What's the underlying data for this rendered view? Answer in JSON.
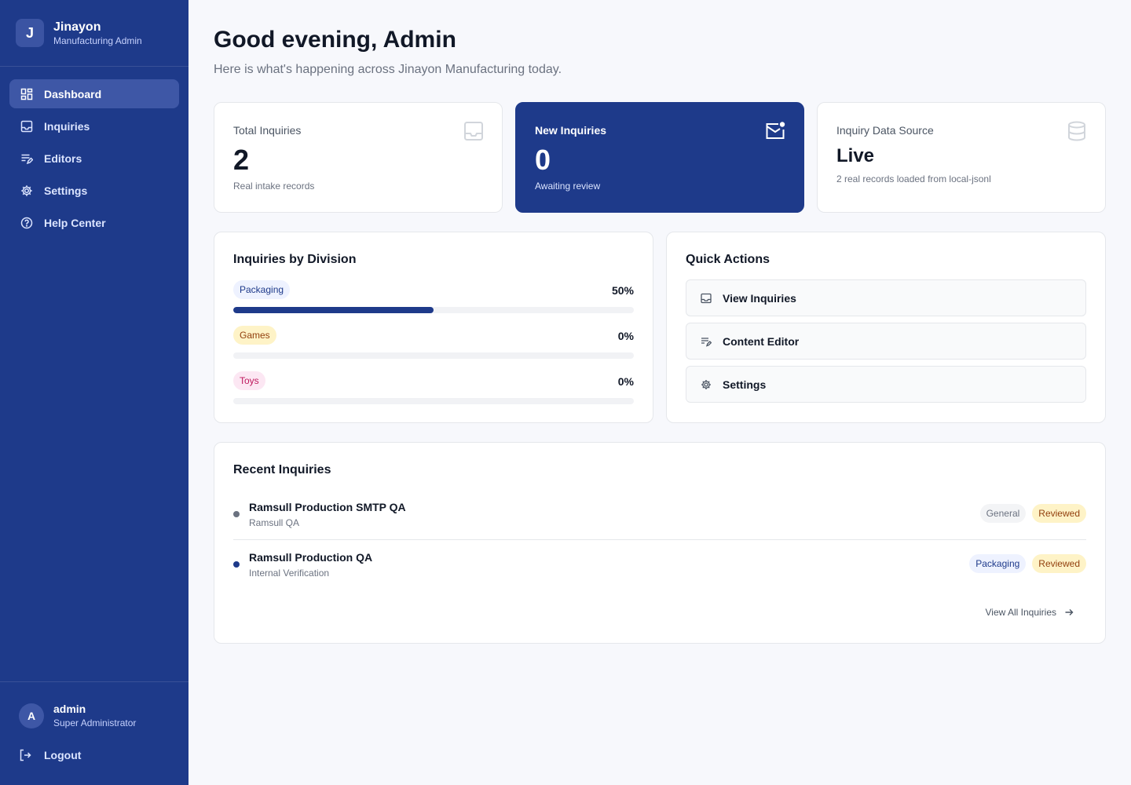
{
  "brand": {
    "logo_letter": "J",
    "name": "Jinayon",
    "subtitle": "Manufacturing Admin"
  },
  "nav": [
    {
      "label": "Dashboard",
      "icon": "dashboard-icon",
      "active": true
    },
    {
      "label": "Inquiries",
      "icon": "inbox-icon",
      "active": false
    },
    {
      "label": "Editors",
      "icon": "edit-list-icon",
      "active": false
    },
    {
      "label": "Settings",
      "icon": "gear-icon",
      "active": false
    },
    {
      "label": "Help Center",
      "icon": "help-icon",
      "active": false
    }
  ],
  "user": {
    "avatar_letter": "A",
    "name": "admin",
    "role": "Super Administrator",
    "logout_label": "Logout"
  },
  "header": {
    "greeting": "Good evening, Admin",
    "subtitle": "Here is what's happening across Jinayon Manufacturing today."
  },
  "stats": {
    "total": {
      "title": "Total Inquiries",
      "value": "2",
      "desc": "Real intake records",
      "icon": "inbox-icon"
    },
    "new": {
      "title": "New Inquiries",
      "value": "0",
      "desc": "Awaiting review",
      "icon": "mail-notification-icon"
    },
    "source": {
      "title": "Inquiry Data Source",
      "value": "Live",
      "desc": "2 real records loaded from local-jsonl",
      "icon": "database-icon"
    }
  },
  "divisions": {
    "title": "Inquiries by Division",
    "items": [
      {
        "label": "Packaging",
        "percent_label": "50%",
        "percent": 50,
        "color": "blue"
      },
      {
        "label": "Games",
        "percent_label": "0%",
        "percent": 0,
        "color": "yellow"
      },
      {
        "label": "Toys",
        "percent_label": "0%",
        "percent": 0,
        "color": "pink"
      }
    ]
  },
  "quick_actions": {
    "title": "Quick Actions",
    "items": [
      {
        "label": "View Inquiries",
        "icon": "inbox-icon"
      },
      {
        "label": "Content Editor",
        "icon": "edit-list-icon"
      },
      {
        "label": "Settings",
        "icon": "gear-icon"
      }
    ]
  },
  "recent": {
    "title": "Recent Inquiries",
    "rows": [
      {
        "name": "Ramsull Production SMTP QA",
        "sub": "Ramsull QA",
        "division": "General",
        "status": "Reviewed",
        "dot_color": "#6b7280"
      },
      {
        "name": "Ramsull Production QA",
        "sub": "Internal Verification",
        "division": "Packaging",
        "status": "Reviewed",
        "dot_color": "#1e3a8a"
      }
    ],
    "view_all": "View All Inquiries"
  },
  "colors": {
    "sidebar": "#1e3a8a",
    "accent": "#1e3a8a",
    "nav_active": "#3e57a6"
  }
}
